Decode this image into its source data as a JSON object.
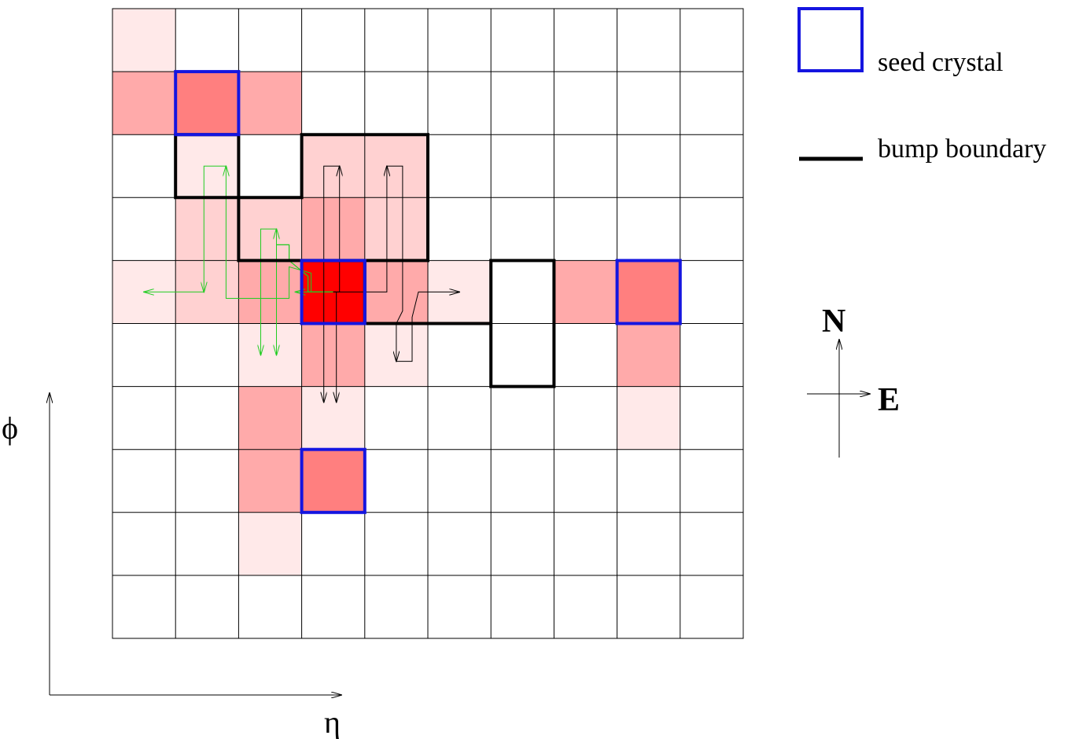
{
  "legend": {
    "seed_label": "seed crystal",
    "boundary_label": "bump boundary",
    "seed_color": "#1515e0",
    "boundary_color": "#000000"
  },
  "axes": {
    "x_label": "η",
    "y_label": "ϕ"
  },
  "compass": {
    "north": "N",
    "east": "E"
  },
  "grid": {
    "rows": 10,
    "cols": 10,
    "line_color": "#000000",
    "energy_palette": {
      "1": "#ffe9e9",
      "2": "#ffd1d1",
      "3": "#ffaaaa",
      "4": "#ff7f7f",
      "5": "#ff0000"
    },
    "cells": [
      {
        "r": 0,
        "c": 0,
        "level": 1
      },
      {
        "r": 1,
        "c": 0,
        "level": 3
      },
      {
        "r": 1,
        "c": 1,
        "level": 4
      },
      {
        "r": 1,
        "c": 2,
        "level": 3
      },
      {
        "r": 2,
        "c": 1,
        "level": 1
      },
      {
        "r": 2,
        "c": 3,
        "level": 2
      },
      {
        "r": 2,
        "c": 4,
        "level": 2
      },
      {
        "r": 3,
        "c": 1,
        "level": 2
      },
      {
        "r": 3,
        "c": 2,
        "level": 2
      },
      {
        "r": 3,
        "c": 3,
        "level": 3
      },
      {
        "r": 3,
        "c": 4,
        "level": 2
      },
      {
        "r": 4,
        "c": 0,
        "level": 1
      },
      {
        "r": 4,
        "c": 1,
        "level": 2
      },
      {
        "r": 4,
        "c": 2,
        "level": 3
      },
      {
        "r": 4,
        "c": 3,
        "level": 5
      },
      {
        "r": 4,
        "c": 4,
        "level": 3
      },
      {
        "r": 4,
        "c": 5,
        "level": 1
      },
      {
        "r": 4,
        "c": 7,
        "level": 3
      },
      {
        "r": 4,
        "c": 8,
        "level": 4
      },
      {
        "r": 5,
        "c": 2,
        "level": 1
      },
      {
        "r": 5,
        "c": 3,
        "level": 3
      },
      {
        "r": 5,
        "c": 4,
        "level": 1
      },
      {
        "r": 5,
        "c": 8,
        "level": 3
      },
      {
        "r": 6,
        "c": 2,
        "level": 3
      },
      {
        "r": 6,
        "c": 3,
        "level": 1
      },
      {
        "r": 6,
        "c": 8,
        "level": 1
      },
      {
        "r": 7,
        "c": 2,
        "level": 3
      },
      {
        "r": 7,
        "c": 3,
        "level": 4
      },
      {
        "r": 8,
        "c": 2,
        "level": 1
      }
    ],
    "seeds": [
      {
        "r": 1,
        "c": 1
      },
      {
        "r": 4,
        "c": 3
      },
      {
        "r": 4,
        "c": 8
      },
      {
        "r": 7,
        "c": 3
      }
    ],
    "bump_boundary": [
      [
        1,
        2
      ],
      [
        2,
        2
      ],
      [
        2,
        3
      ],
      [
        3,
        3
      ],
      [
        3,
        2
      ],
      [
        5,
        2
      ],
      [
        5,
        4
      ],
      [
        4,
        4
      ],
      [
        4,
        5
      ],
      [
        6,
        5
      ],
      [
        6,
        4
      ],
      [
        7,
        4
      ],
      [
        7,
        6
      ],
      [
        6,
        6
      ],
      [
        6,
        5
      ],
      [
        4,
        5
      ],
      [
        4,
        4
      ],
      [
        2,
        4
      ],
      [
        2,
        3
      ],
      [
        1,
        3
      ]
    ]
  },
  "paths": {
    "green_color": "#22cc22",
    "black_color": "#000000",
    "green": [
      [
        [
          3.5,
          4.5
        ],
        [
          3.1,
          4.5
        ],
        [
          3.1,
          4.25
        ],
        [
          2.8,
          4.0
        ],
        [
          2.8,
          3.75
        ],
        [
          2.6,
          3.75
        ],
        [
          2.6,
          5.5
        ]
      ],
      [
        [
          3.5,
          4.5
        ],
        [
          3.1,
          4.5
        ],
        [
          3.1,
          4.25
        ],
        [
          2.8,
          4.0
        ],
        [
          2.8,
          3.75
        ],
        [
          2.6,
          3.75
        ],
        [
          2.6,
          3.5
        ]
      ],
      [
        [
          3.5,
          4.5
        ],
        [
          3.1,
          4.5
        ],
        [
          3.1,
          4.25
        ],
        [
          2.8,
          4.0
        ],
        [
          2.8,
          3.75
        ],
        [
          2.6,
          3.75
        ],
        [
          2.6,
          3.5
        ],
        [
          2.35,
          3.5
        ],
        [
          2.35,
          5.5
        ]
      ],
      [
        [
          3.5,
          4.5
        ],
        [
          2.9,
          4.5
        ]
      ],
      [
        [
          3.5,
          4.5
        ],
        [
          3.15,
          4.5
        ],
        [
          3.15,
          4.2
        ],
        [
          2.8,
          4.1
        ],
        [
          2.8,
          4.6
        ],
        [
          1.8,
          4.6
        ],
        [
          1.8,
          2.5
        ]
      ],
      [
        [
          1.8,
          2.5
        ],
        [
          1.45,
          2.5
        ],
        [
          1.45,
          4.5
        ]
      ],
      [
        [
          1.45,
          4.5
        ],
        [
          0.5,
          4.5
        ]
      ]
    ],
    "black": [
      [
        [
          3.5,
          4.5
        ],
        [
          3.6,
          4.5
        ],
        [
          3.6,
          2.5
        ]
      ],
      [
        [
          3.6,
          2.5
        ],
        [
          3.35,
          2.5
        ],
        [
          3.35,
          6.25
        ]
      ],
      [
        [
          3.5,
          4.5
        ],
        [
          4.35,
          4.5
        ],
        [
          4.35,
          2.5
        ]
      ],
      [
        [
          4.35,
          2.5
        ],
        [
          4.6,
          2.5
        ],
        [
          4.6,
          4.8
        ],
        [
          4.5,
          5.0
        ],
        [
          4.5,
          5.6
        ]
      ],
      [
        [
          4.5,
          5.6
        ],
        [
          4.75,
          5.6
        ],
        [
          4.75,
          4.9
        ],
        [
          4.85,
          4.5
        ],
        [
          5.5,
          4.5
        ]
      ],
      [
        [
          3.5,
          4.5
        ],
        [
          3.55,
          4.5
        ],
        [
          3.55,
          6.25
        ]
      ]
    ]
  }
}
